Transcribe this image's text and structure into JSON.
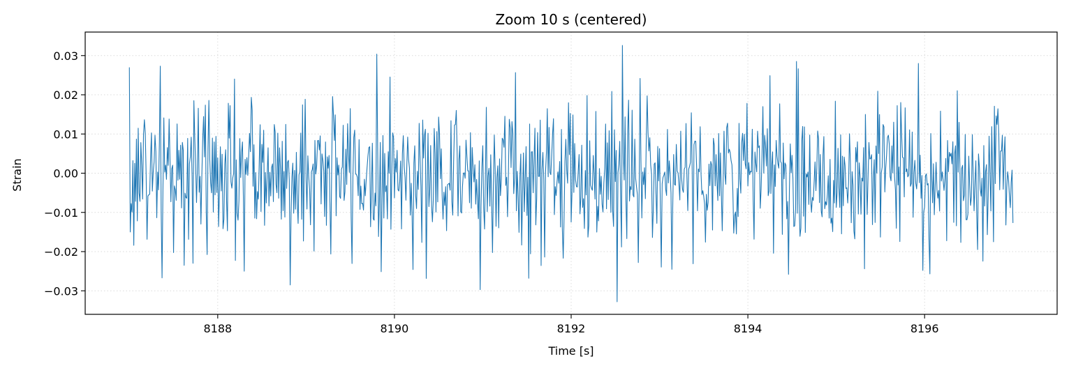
{
  "chart_data": {
    "type": "line",
    "title": "Zoom 10 s (centered)",
    "xlabel": "Time [s]",
    "ylabel": "Strain",
    "xlim": [
      8186.5,
      8197.5
    ],
    "ylim": [
      -0.036,
      0.036
    ],
    "xticks": [
      8188,
      8190,
      8192,
      8194,
      8196
    ],
    "xtick_labels": [
      "8188",
      "8190",
      "8192",
      "8194",
      "8196"
    ],
    "yticks": [
      -0.03,
      -0.02,
      -0.01,
      0.0,
      0.01,
      0.02,
      0.03
    ],
    "ytick_labels": [
      "−0.03",
      "−0.02",
      "−0.01",
      "0.00",
      "0.01",
      "0.02",
      "0.03"
    ],
    "grid": true,
    "grid_style": "dotted",
    "line_color": "#1f77b4",
    "series": [
      {
        "x_start": 8187.0,
        "x_end": 8197.0,
        "sample_interval": 0.01,
        "y_range": [
          -0.033,
          0.033
        ],
        "key_points": [
          {
            "x": 8187.0,
            "y": 0.027
          },
          {
            "x": 8187.01,
            "y": -0.015
          },
          {
            "x": 8187.35,
            "y": 0.0273
          },
          {
            "x": 8187.37,
            "y": -0.0267
          },
          {
            "x": 8187.62,
            "y": -0.0235
          },
          {
            "x": 8188.3,
            "y": 0.024
          },
          {
            "x": 8188.3,
            "y": -0.025
          },
          {
            "x": 8188.82,
            "y": -0.0285
          },
          {
            "x": 8190.97,
            "y": -0.0297
          },
          {
            "x": 8191.52,
            "y": -0.0268
          },
          {
            "x": 8192.52,
            "y": -0.0328
          },
          {
            "x": 8192.58,
            "y": 0.0326
          },
          {
            "x": 8194.46,
            "y": -0.0258
          },
          {
            "x": 8194.55,
            "y": 0.0285
          },
          {
            "x": 8195.93,
            "y": 0.028
          },
          {
            "x": 8195.98,
            "y": -0.0248
          },
          {
            "x": 8197.0,
            "y": -0.0127
          }
        ]
      }
    ]
  }
}
